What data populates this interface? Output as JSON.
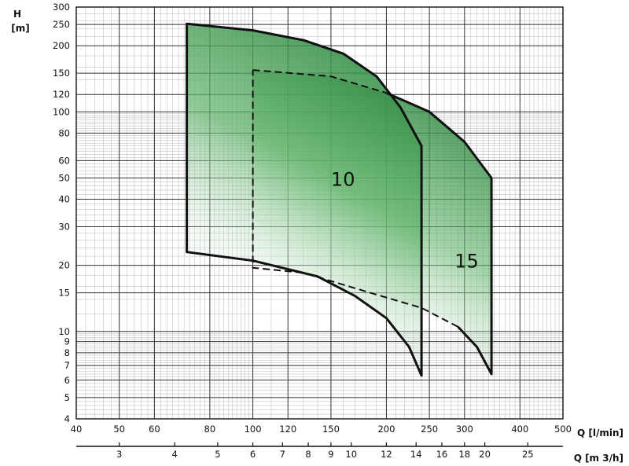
{
  "chart_data": {
    "type": "area",
    "y_axis": {
      "title_top": "H",
      "title_unit": "[m]",
      "scale": "log",
      "range": [
        4,
        300
      ],
      "major_ticks": [
        4,
        5,
        6,
        7,
        8,
        9,
        10,
        15,
        20,
        30,
        40,
        50,
        60,
        80,
        100,
        120,
        150,
        200,
        250,
        300
      ]
    },
    "x_axis": {
      "label": "Q [l/min]",
      "scale": "log",
      "range": [
        40,
        500
      ],
      "ticks": [
        40,
        50,
        60,
        80,
        100,
        120,
        150,
        200,
        250,
        300,
        400,
        500
      ]
    },
    "x_axis_secondary": {
      "label": "Q [m 3/h]",
      "ticks": [
        3,
        4,
        5,
        6,
        7,
        8,
        9,
        10,
        12,
        14,
        16,
        18,
        20,
        25
      ]
    },
    "series": [
      {
        "name": "10",
        "color": "#2e8b3f",
        "outline": [
          {
            "q": 71,
            "h": 252
          },
          {
            "q": 100,
            "h": 235
          },
          {
            "q": 130,
            "h": 212
          },
          {
            "q": 160,
            "h": 184
          },
          {
            "q": 190,
            "h": 145
          },
          {
            "q": 215,
            "h": 105
          },
          {
            "q": 240,
            "h": 70
          },
          {
            "q": 240,
            "h": 6.3
          },
          {
            "q": 225,
            "h": 8.5
          },
          {
            "q": 200,
            "h": 11.5
          },
          {
            "q": 170,
            "h": 14.5
          },
          {
            "q": 140,
            "h": 17.8
          },
          {
            "q": 100,
            "h": 21
          },
          {
            "q": 71,
            "h": 23
          }
        ]
      },
      {
        "name": "15",
        "color": "#2e8b3f",
        "outline": [
          {
            "q": 100,
            "h": 155
          },
          {
            "q": 150,
            "h": 145
          },
          {
            "q": 200,
            "h": 122
          },
          {
            "q": 250,
            "h": 100
          },
          {
            "q": 300,
            "h": 73
          },
          {
            "q": 345,
            "h": 50
          },
          {
            "q": 345,
            "h": 6.4
          },
          {
            "q": 320,
            "h": 8.5
          },
          {
            "q": 290,
            "h": 10.5
          },
          {
            "q": 240,
            "h": 12.8
          },
          {
            "q": 180,
            "h": 15.2
          },
          {
            "q": 130,
            "h": 18.5
          },
          {
            "q": 100,
            "h": 19.5
          }
        ]
      }
    ]
  }
}
